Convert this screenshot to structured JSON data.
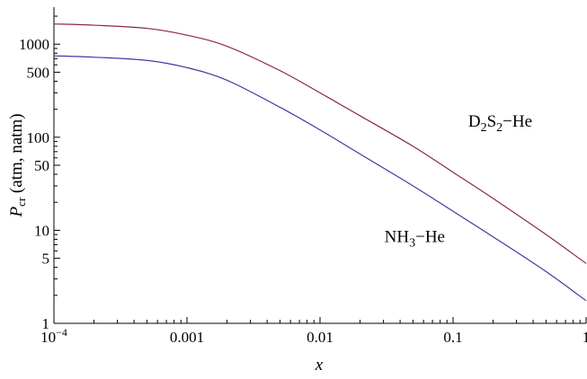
{
  "chart_data": {
    "type": "line",
    "xscale": "log",
    "yscale": "log",
    "xlim": [
      0.0001,
      1
    ],
    "ylim": [
      1,
      2500
    ],
    "xlabel": "x",
    "ylabel": {
      "base": "P",
      "sub": "cr",
      "rest": " (atm, natm)"
    },
    "xticks": [
      {
        "value": 0.0001,
        "label": "10",
        "sup": "−4"
      },
      {
        "value": 0.001,
        "label": "0.001"
      },
      {
        "value": 0.01,
        "label": "0.01"
      },
      {
        "value": 0.1,
        "label": "0.1"
      },
      {
        "value": 1,
        "label": "1"
      }
    ],
    "yticks": [
      {
        "value": 1,
        "label": "1"
      },
      {
        "value": 5,
        "label": "5"
      },
      {
        "value": 10,
        "label": "10"
      },
      {
        "value": 50,
        "label": "50"
      },
      {
        "value": 100,
        "label": "100"
      },
      {
        "value": 500,
        "label": "500"
      },
      {
        "value": 1000,
        "label": "1000"
      }
    ],
    "series": [
      {
        "name": "D2S2-He",
        "color": "#8b2552",
        "x": [
          0.0001,
          0.0002,
          0.0005,
          0.001,
          0.002,
          0.005,
          0.01,
          0.02,
          0.05,
          0.1,
          0.2,
          0.5,
          1
        ],
        "y": [
          1650,
          1600,
          1480,
          1250,
          950,
          520,
          300,
          170,
          80,
          42,
          22,
          9,
          4.4
        ]
      },
      {
        "name": "NH3-He",
        "color": "#3a3aa6",
        "x": [
          0.0001,
          0.0002,
          0.0005,
          0.001,
          0.002,
          0.005,
          0.01,
          0.02,
          0.05,
          0.1,
          0.2,
          0.5,
          1
        ],
        "y": [
          750,
          725,
          670,
          560,
          410,
          210,
          120,
          66,
          30,
          16,
          8.5,
          3.6,
          1.75
        ]
      }
    ],
    "annotations": [
      {
        "parts": [
          {
            "t": "D"
          },
          {
            "t": "2",
            "sub": true
          },
          {
            "t": "S"
          },
          {
            "t": "2",
            "sub": true
          },
          {
            "t": "−He"
          }
        ],
        "x": 0.13,
        "y": 130
      },
      {
        "parts": [
          {
            "t": "NH"
          },
          {
            "t": "3",
            "sub": true
          },
          {
            "t": "−He"
          }
        ],
        "x": 0.0305,
        "y": 7.5
      }
    ]
  }
}
